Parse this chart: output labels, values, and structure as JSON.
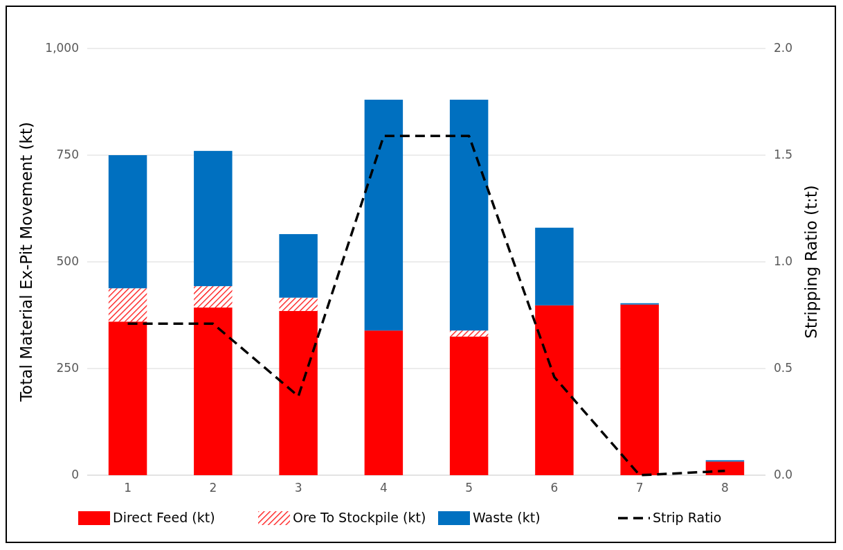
{
  "chart_data": {
    "type": "bar",
    "stacked": true,
    "ylabel": "Total Material Ex-Pit Movement (kt)",
    "y2label": "Stripping Ratio (t:t)",
    "categories": [
      "1",
      "2",
      "3",
      "4",
      "5",
      "6",
      "7",
      "8"
    ],
    "series": [
      {
        "name": "Direct Feed (kt)",
        "color": "#ff0000",
        "values": [
          360,
          393,
          385,
          339,
          325,
          398,
          400,
          32
        ]
      },
      {
        "name": "Ore To Stockpile (kt)",
        "color": "#ff0000",
        "values": [
          78,
          50,
          31,
          0,
          14,
          0,
          0,
          0
        ]
      },
      {
        "name": "Waste (kt)",
        "color": "#0070c0",
        "values": [
          312,
          317,
          149,
          541,
          541,
          182,
          3,
          3
        ]
      },
      {
        "name": "Strip Ratio",
        "type": "line",
        "axis": "y2",
        "color": "#000000",
        "line_style": "dashed",
        "marker": "none",
        "values": [
          0.71,
          0.71,
          0.37,
          1.59,
          1.59,
          0.46,
          0.0,
          0.02
        ]
      }
    ],
    "ylim": [
      0,
      1000
    ],
    "yticks": [
      0,
      250,
      500,
      750,
      {
        "value": 1000,
        "label": "1,000"
      }
    ],
    "y2lim": [
      0,
      2
    ],
    "y2ticks": [
      {
        "value": 0,
        "label": "0.0"
      },
      {
        "value": 0.5,
        "label": "0.5"
      },
      {
        "value": 1,
        "label": "1.0"
      },
      {
        "value": 1.5,
        "label": "1.5"
      },
      {
        "value": 2,
        "label": "2.0"
      }
    ],
    "grid": "y",
    "legend": "bottom"
  }
}
